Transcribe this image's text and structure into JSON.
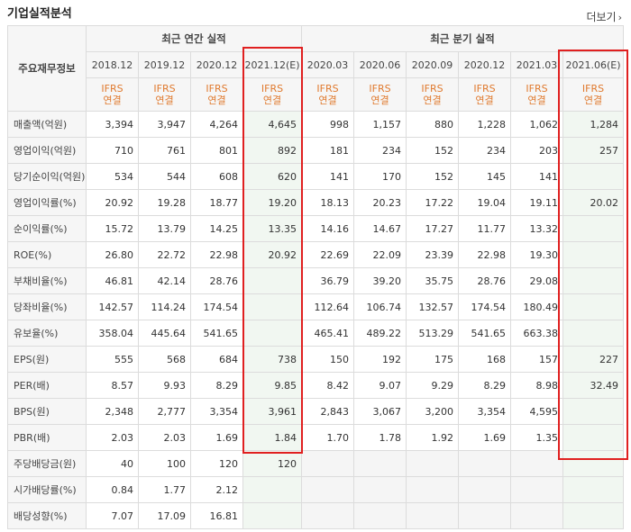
{
  "title": "기업실적분석",
  "more_label": "더보기",
  "corner_label": "주요재무정보",
  "annual_header": "최근 연간 실적",
  "quarter_header": "최근 분기 실적",
  "annual_periods": [
    "2018.12",
    "2019.12",
    "2020.12",
    "2021.12(E)"
  ],
  "quarter_periods": [
    "2020.03",
    "2020.06",
    "2020.09",
    "2020.12",
    "2021.03",
    "2021.06(E)"
  ],
  "basis_line1": "IFRS",
  "basis_line2": "연결",
  "rows": [
    {
      "label": "매출액(억원)",
      "values": [
        "3,394",
        "3,947",
        "4,264",
        "4,645",
        "998",
        "1,157",
        "880",
        "1,228",
        "1,062",
        "1,284"
      ]
    },
    {
      "label": "영업이익(억원)",
      "values": [
        "710",
        "761",
        "801",
        "892",
        "181",
        "234",
        "152",
        "234",
        "203",
        "257"
      ]
    },
    {
      "label": "당기순이익(억원)",
      "values": [
        "534",
        "544",
        "608",
        "620",
        "141",
        "170",
        "152",
        "145",
        "141",
        ""
      ]
    },
    {
      "label": "영업이익률(%)",
      "values": [
        "20.92",
        "19.28",
        "18.77",
        "19.20",
        "18.13",
        "20.23",
        "17.22",
        "19.04",
        "19.11",
        "20.02"
      ]
    },
    {
      "label": "순이익률(%)",
      "values": [
        "15.72",
        "13.79",
        "14.25",
        "13.35",
        "14.16",
        "14.67",
        "17.27",
        "11.77",
        "13.32",
        ""
      ]
    },
    {
      "label": "ROE(%)",
      "values": [
        "26.80",
        "22.72",
        "22.98",
        "20.92",
        "22.69",
        "22.09",
        "23.39",
        "22.98",
        "19.30",
        ""
      ]
    },
    {
      "label": "부채비율(%)",
      "values": [
        "46.81",
        "42.14",
        "28.76",
        "",
        "36.79",
        "39.20",
        "35.75",
        "28.76",
        "29.08",
        ""
      ]
    },
    {
      "label": "당좌비율(%)",
      "values": [
        "142.57",
        "114.24",
        "174.54",
        "",
        "112.64",
        "106.74",
        "132.57",
        "174.54",
        "180.49",
        ""
      ]
    },
    {
      "label": "유보율(%)",
      "values": [
        "358.04",
        "445.64",
        "541.65",
        "",
        "465.41",
        "489.22",
        "513.29",
        "541.65",
        "663.38",
        ""
      ]
    },
    {
      "label": "EPS(원)",
      "values": [
        "555",
        "568",
        "684",
        "738",
        "150",
        "192",
        "175",
        "168",
        "157",
        "227"
      ]
    },
    {
      "label": "PER(배)",
      "values": [
        "8.57",
        "9.93",
        "8.29",
        "9.85",
        "8.42",
        "9.07",
        "9.29",
        "8.29",
        "8.98",
        "32.49"
      ]
    },
    {
      "label": "BPS(원)",
      "values": [
        "2,348",
        "2,777",
        "3,354",
        "3,961",
        "2,843",
        "3,067",
        "3,200",
        "3,354",
        "4,595",
        ""
      ]
    },
    {
      "label": "PBR(배)",
      "values": [
        "2.03",
        "2.03",
        "1.69",
        "1.84",
        "1.70",
        "1.78",
        "1.92",
        "1.69",
        "1.35",
        ""
      ]
    },
    {
      "label": "주당배당금(원)",
      "values": [
        "40",
        "100",
        "120",
        "120",
        "",
        "",
        "",
        "",
        "",
        ""
      ]
    },
    {
      "label": "시가배당률(%)",
      "values": [
        "0.84",
        "1.77",
        "2.12",
        "",
        "",
        "",
        "",
        "",
        "",
        ""
      ]
    },
    {
      "label": "배당성향(%)",
      "values": [
        "7.07",
        "17.09",
        "16.81",
        "",
        "",
        "",
        "",
        "",
        "",
        ""
      ]
    }
  ],
  "highlight_color": "#e02020"
}
